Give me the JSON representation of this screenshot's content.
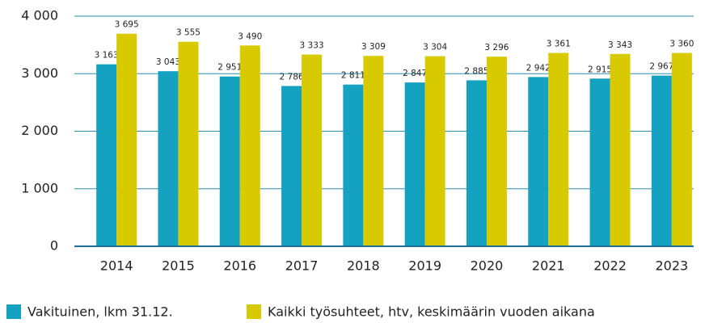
{
  "chart_data": {
    "type": "bar",
    "categories": [
      "2014",
      "2015",
      "2016",
      "2017",
      "2018",
      "2019",
      "2020",
      "2021",
      "2022",
      "2023"
    ],
    "series": [
      {
        "name": "Vakituinen, lkm 31.12.",
        "color": "#14a2c0",
        "values": [
          3163,
          3043,
          2951,
          2786,
          2811,
          2847,
          2885,
          2942,
          2915,
          2967
        ],
        "value_labels": [
          "3 163",
          "3 043",
          "2 951",
          "2 786",
          "2 811",
          "2 847",
          "2 885",
          "2 942",
          "2 915",
          "2 967"
        ]
      },
      {
        "name": "Kaikki työsuhteet, htv, keskimäärin vuoden aikana",
        "color": "#d8ca00",
        "values": [
          3695,
          3555,
          3490,
          3333,
          3309,
          3304,
          3296,
          3361,
          3343,
          3360
        ],
        "value_labels": [
          "3 695",
          "3 555",
          "3 490",
          "3 333",
          "3 309",
          "3 304",
          "3 296",
          "3 361",
          "3 343",
          "3 360"
        ]
      }
    ],
    "ylim": [
      0,
      4000
    ],
    "yticks": [
      0,
      {
        "value": 1000,
        "label": "1 000"
      },
      {
        "value": 2000,
        "label": "2 000"
      },
      {
        "value": 3000,
        "label": "3 000"
      },
      {
        "value": 4000,
        "label": "4 000"
      }
    ],
    "grid": true,
    "legend": "bottom"
  }
}
